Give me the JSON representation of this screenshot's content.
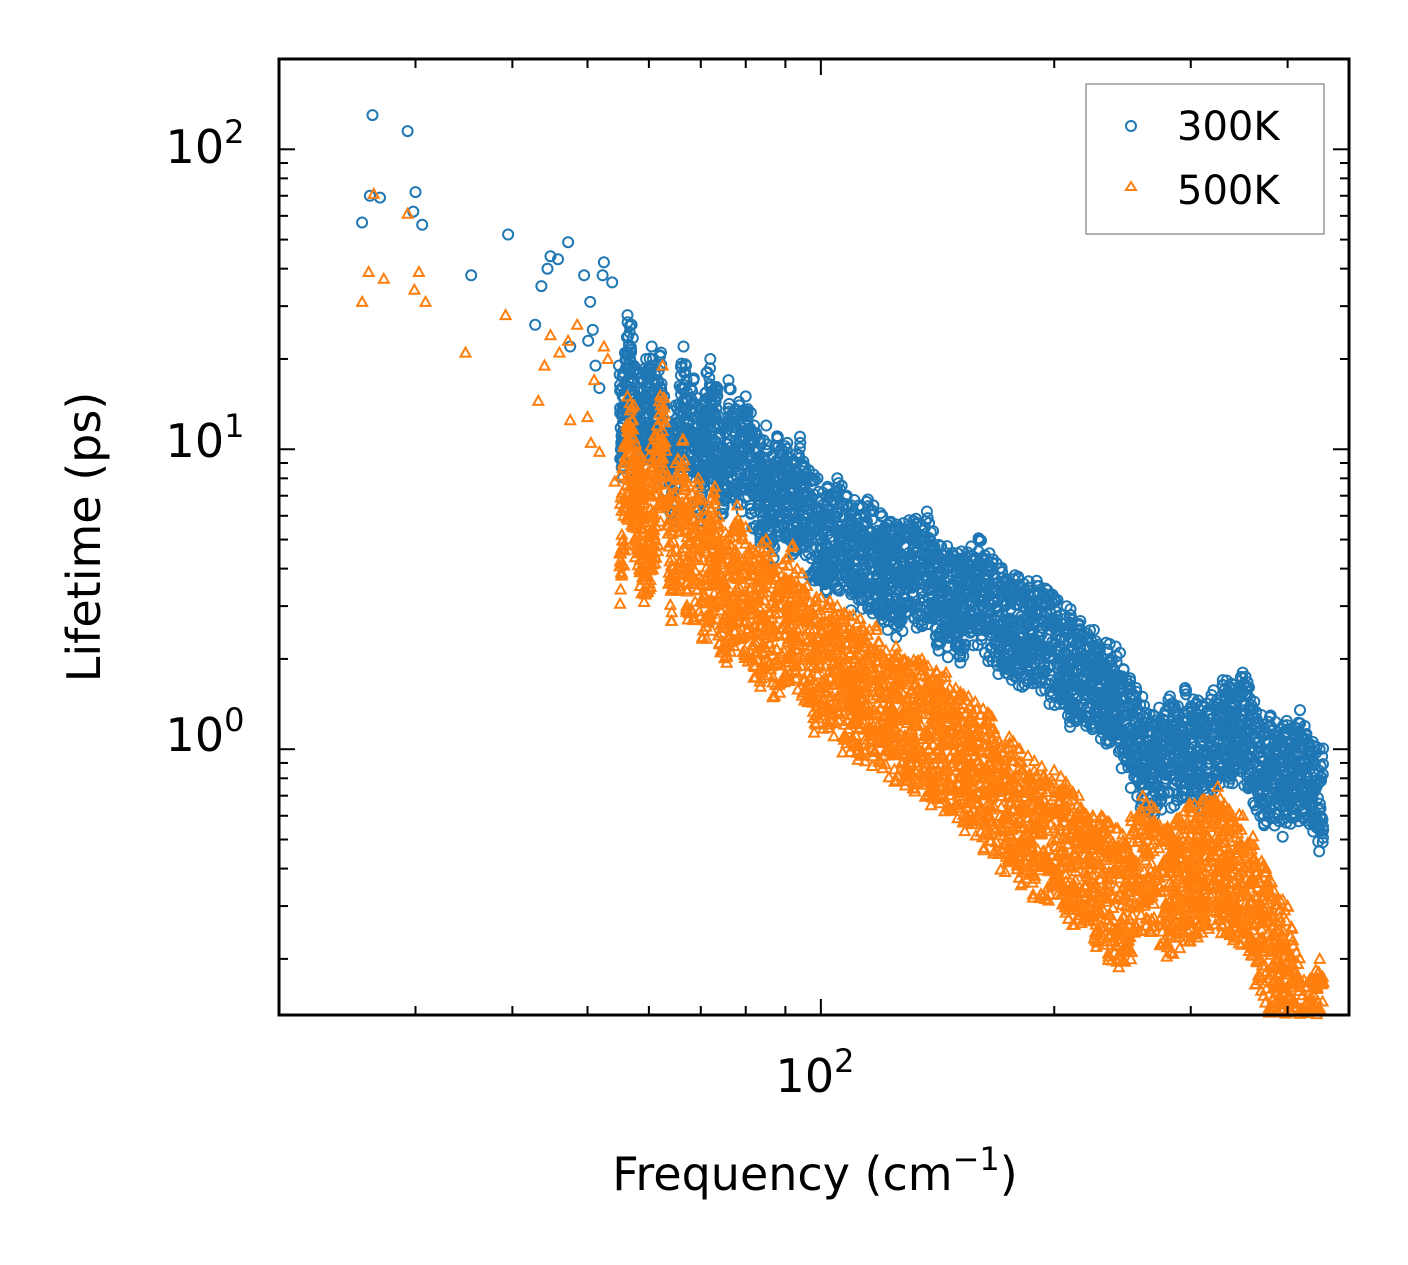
{
  "chart_data": {
    "type": "scatter",
    "title": "",
    "xlabel": "Frequency (cm",
    "xlabel_sup": "−1",
    "xlabel_end": ")",
    "ylabel": "Lifetime (ps)",
    "xscale": "log",
    "yscale": "log",
    "xlim": [
      20,
      480
    ],
    "ylim": [
      0.13,
      200
    ],
    "x_ticks": [
      {
        "base": "10",
        "exp": "2",
        "value": 100
      }
    ],
    "y_ticks": [
      {
        "base": "10",
        "exp": "0",
        "value": 1
      },
      {
        "base": "10",
        "exp": "1",
        "value": 10
      },
      {
        "base": "10",
        "exp": "2",
        "value": 100
      }
    ],
    "legend_position": "top-right",
    "series": [
      {
        "name": "300K",
        "marker": "circle",
        "color": "#1f77b4",
        "points": [
          [
            25.6,
            57
          ],
          [
            26.4,
            130
          ],
          [
            26.2,
            70
          ],
          [
            27.0,
            69
          ],
          [
            29.3,
            115
          ],
          [
            29.8,
            62
          ],
          [
            30.0,
            72
          ],
          [
            30.6,
            56
          ],
          [
            35.4,
            38
          ],
          [
            39.5,
            52
          ],
          [
            42.8,
            26
          ],
          [
            43.6,
            35
          ],
          [
            44.4,
            40
          ],
          [
            44.8,
            44
          ],
          [
            45.8,
            43
          ],
          [
            47.2,
            49
          ],
          [
            47.5,
            22
          ],
          [
            49.5,
            38
          ],
          [
            50.1,
            23
          ],
          [
            50.4,
            31
          ],
          [
            50.8,
            25
          ],
          [
            51.2,
            19
          ],
          [
            51.8,
            16
          ],
          [
            52.3,
            38
          ],
          [
            52.5,
            42
          ],
          [
            53.8,
            36
          ],
          [
            54.9,
            19
          ],
          [
            55.6,
            18
          ],
          [
            56.3,
            28
          ],
          [
            57.0,
            26
          ],
          [
            58.5,
            16
          ],
          [
            59.5,
            20
          ],
          [
            60.5,
            22
          ],
          [
            61.0,
            19
          ],
          [
            62.2,
            21
          ],
          [
            62.8,
            15
          ],
          [
            64.5,
            12
          ],
          [
            65.0,
            14
          ],
          [
            66.5,
            22
          ],
          [
            67.0,
            19
          ],
          [
            68.5,
            17
          ],
          [
            70.0,
            13
          ],
          [
            71.2,
            18
          ],
          [
            72.0,
            20
          ],
          [
            73.5,
            16
          ],
          [
            75.0,
            12
          ],
          [
            76.0,
            17
          ],
          [
            78.5,
            14
          ],
          [
            80.0,
            15
          ],
          [
            82.0,
            12
          ],
          [
            83.5,
            10.5
          ],
          [
            85.0,
            12
          ],
          [
            86.5,
            9.5
          ],
          [
            88.0,
            11
          ],
          [
            90.5,
            10.5
          ],
          [
            92.0,
            9
          ],
          [
            94.0,
            11
          ],
          [
            96.5,
            8.5
          ],
          [
            99.0,
            8
          ],
          [
            102.0,
            7.5
          ],
          [
            105.0,
            8
          ],
          [
            108.0,
            7
          ],
          [
            112.0,
            6.5
          ],
          [
            115.0,
            6.8
          ],
          [
            120.0,
            6
          ],
          [
            125.0,
            5.5
          ],
          [
            130.0,
            5.8
          ],
          [
            137.0,
            6.2
          ],
          [
            142.0,
            4.8
          ],
          [
            150.0,
            4.5
          ],
          [
            160.0,
            5
          ],
          [
            165.0,
            4.5
          ],
          [
            170.0,
            4
          ],
          [
            178.0,
            3.8
          ],
          [
            190.0,
            3.5
          ],
          [
            200.0,
            3.2
          ],
          [
            210.0,
            2.8
          ],
          [
            225.0,
            2.5
          ],
          [
            240.0,
            2.2
          ],
          [
            255.0,
            1.6
          ],
          [
            268.0,
            1.3
          ],
          [
            282.0,
            1.5
          ],
          [
            295.0,
            1.6
          ],
          [
            310.0,
            1.4
          ],
          [
            330.0,
            1.7
          ],
          [
            350.0,
            1.8
          ],
          [
            370.0,
            1.3
          ],
          [
            395.0,
            1.2
          ],
          [
            415.0,
            1.35
          ],
          [
            440.0,
            1.0
          ]
        ]
      },
      {
        "name": "500K",
        "marker": "triangle",
        "color": "#ff7f0e",
        "points": [
          [
            25.6,
            31
          ],
          [
            26.1,
            39
          ],
          [
            26.5,
            71
          ],
          [
            27.3,
            37
          ],
          [
            29.3,
            61
          ],
          [
            29.9,
            34
          ],
          [
            30.3,
            39
          ],
          [
            30.9,
            31
          ],
          [
            34.8,
            21
          ],
          [
            39.2,
            28
          ],
          [
            43.2,
            14.5
          ],
          [
            44.0,
            19
          ],
          [
            44.8,
            24
          ],
          [
            46.0,
            21
          ],
          [
            47.2,
            23
          ],
          [
            47.5,
            12.5
          ],
          [
            48.5,
            26
          ],
          [
            50.0,
            12.8
          ],
          [
            50.5,
            10.5
          ],
          [
            51.0,
            17
          ],
          [
            51.8,
            9.8
          ],
          [
            52.5,
            22
          ],
          [
            53.1,
            20
          ],
          [
            54.2,
            7.8
          ],
          [
            55.7,
            10.2
          ],
          [
            56.3,
            15
          ],
          [
            57.4,
            14
          ],
          [
            58.8,
            8.5
          ],
          [
            60.0,
            9.5
          ],
          [
            61.5,
            12
          ],
          [
            62.5,
            19
          ],
          [
            64.0,
            7
          ],
          [
            65.0,
            9
          ],
          [
            66.4,
            10.8
          ],
          [
            67.5,
            6.5
          ],
          [
            69.5,
            8
          ],
          [
            71.0,
            6
          ],
          [
            73.0,
            7.5
          ],
          [
            75.5,
            5
          ],
          [
            78.0,
            6.5
          ],
          [
            80.0,
            5.5
          ],
          [
            82.5,
            4.5
          ],
          [
            85.0,
            5
          ],
          [
            88.0,
            4
          ],
          [
            92.0,
            4.8
          ],
          [
            96.0,
            3.5
          ],
          [
            100.0,
            3.2
          ],
          [
            105.0,
            3
          ],
          [
            110.0,
            2.8
          ],
          [
            118.0,
            2.5
          ],
          [
            125.0,
            2.2
          ],
          [
            135.0,
            2
          ],
          [
            145.0,
            1.8
          ],
          [
            155.0,
            1.5
          ],
          [
            165.0,
            1.3
          ],
          [
            175.0,
            1.1
          ],
          [
            185.0,
            0.95
          ],
          [
            200.0,
            0.85
          ],
          [
            215.0,
            0.7
          ],
          [
            230.0,
            0.6
          ],
          [
            245.0,
            0.52
          ],
          [
            260.0,
            0.7
          ],
          [
            280.0,
            0.55
          ],
          [
            300.0,
            0.65
          ],
          [
            325.0,
            0.75
          ],
          [
            350.0,
            0.6
          ],
          [
            375.0,
            0.4
          ],
          [
            400.0,
            0.3
          ],
          [
            420.0,
            0.17
          ],
          [
            440.0,
            0.2
          ]
        ]
      }
    ]
  }
}
